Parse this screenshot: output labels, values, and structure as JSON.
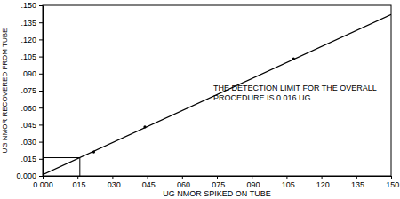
{
  "chart_data": {
    "type": "line",
    "x_label": "UG NMOR SPIKED ON TUBE",
    "y_label": "UG NMOR RECOVERED FROM TUBE",
    "annotation": [
      "THE DETECTION LIMIT FOR THE OVERALL",
      "PROCEDURE IS 0.016 UG."
    ],
    "series": [
      {
        "type": "line",
        "color": "#000000",
        "line_style": "solid",
        "x": [
          0.0,
          0.15
        ],
        "values": [
          0.001,
          0.142
        ]
      },
      {
        "type": "scatter",
        "color": "#000000",
        "marker": "dot",
        "x": [
          0.022,
          0.044,
          0.108
        ],
        "values": [
          0.021,
          0.043,
          0.103
        ]
      }
    ],
    "detection_limit": {
      "x": 0.016,
      "y": 0.016
    },
    "xlim": [
      0.0,
      0.15
    ],
    "ylim": [
      0.0,
      0.15
    ],
    "xticks": [
      {
        "value": 0.0,
        "label": "0.000"
      },
      {
        "value": 0.015,
        "label": ".015"
      },
      {
        "value": 0.03,
        "label": ".030"
      },
      {
        "value": 0.045,
        "label": ".045"
      },
      {
        "value": 0.06,
        "label": ".060"
      },
      {
        "value": 0.075,
        "label": ".075"
      },
      {
        "value": 0.09,
        "label": ".090"
      },
      {
        "value": 0.105,
        "label": ".105"
      },
      {
        "value": 0.12,
        "label": ".120"
      },
      {
        "value": 0.135,
        "label": ".135"
      },
      {
        "value": 0.15,
        "label": ".150"
      }
    ],
    "yticks": [
      {
        "value": 0.0,
        "label": "0.000"
      },
      {
        "value": 0.015,
        "label": ".015"
      },
      {
        "value": 0.03,
        "label": ".030"
      },
      {
        "value": 0.045,
        "label": ".045"
      },
      {
        "value": 0.06,
        "label": ".060"
      },
      {
        "value": 0.075,
        "label": ".075"
      },
      {
        "value": 0.09,
        "label": ".090"
      },
      {
        "value": 0.105,
        "label": ".105"
      },
      {
        "value": 0.12,
        "label": ".120"
      },
      {
        "value": 0.135,
        "label": ".135"
      },
      {
        "value": 0.15,
        "label": ".150"
      }
    ],
    "grid": false
  }
}
